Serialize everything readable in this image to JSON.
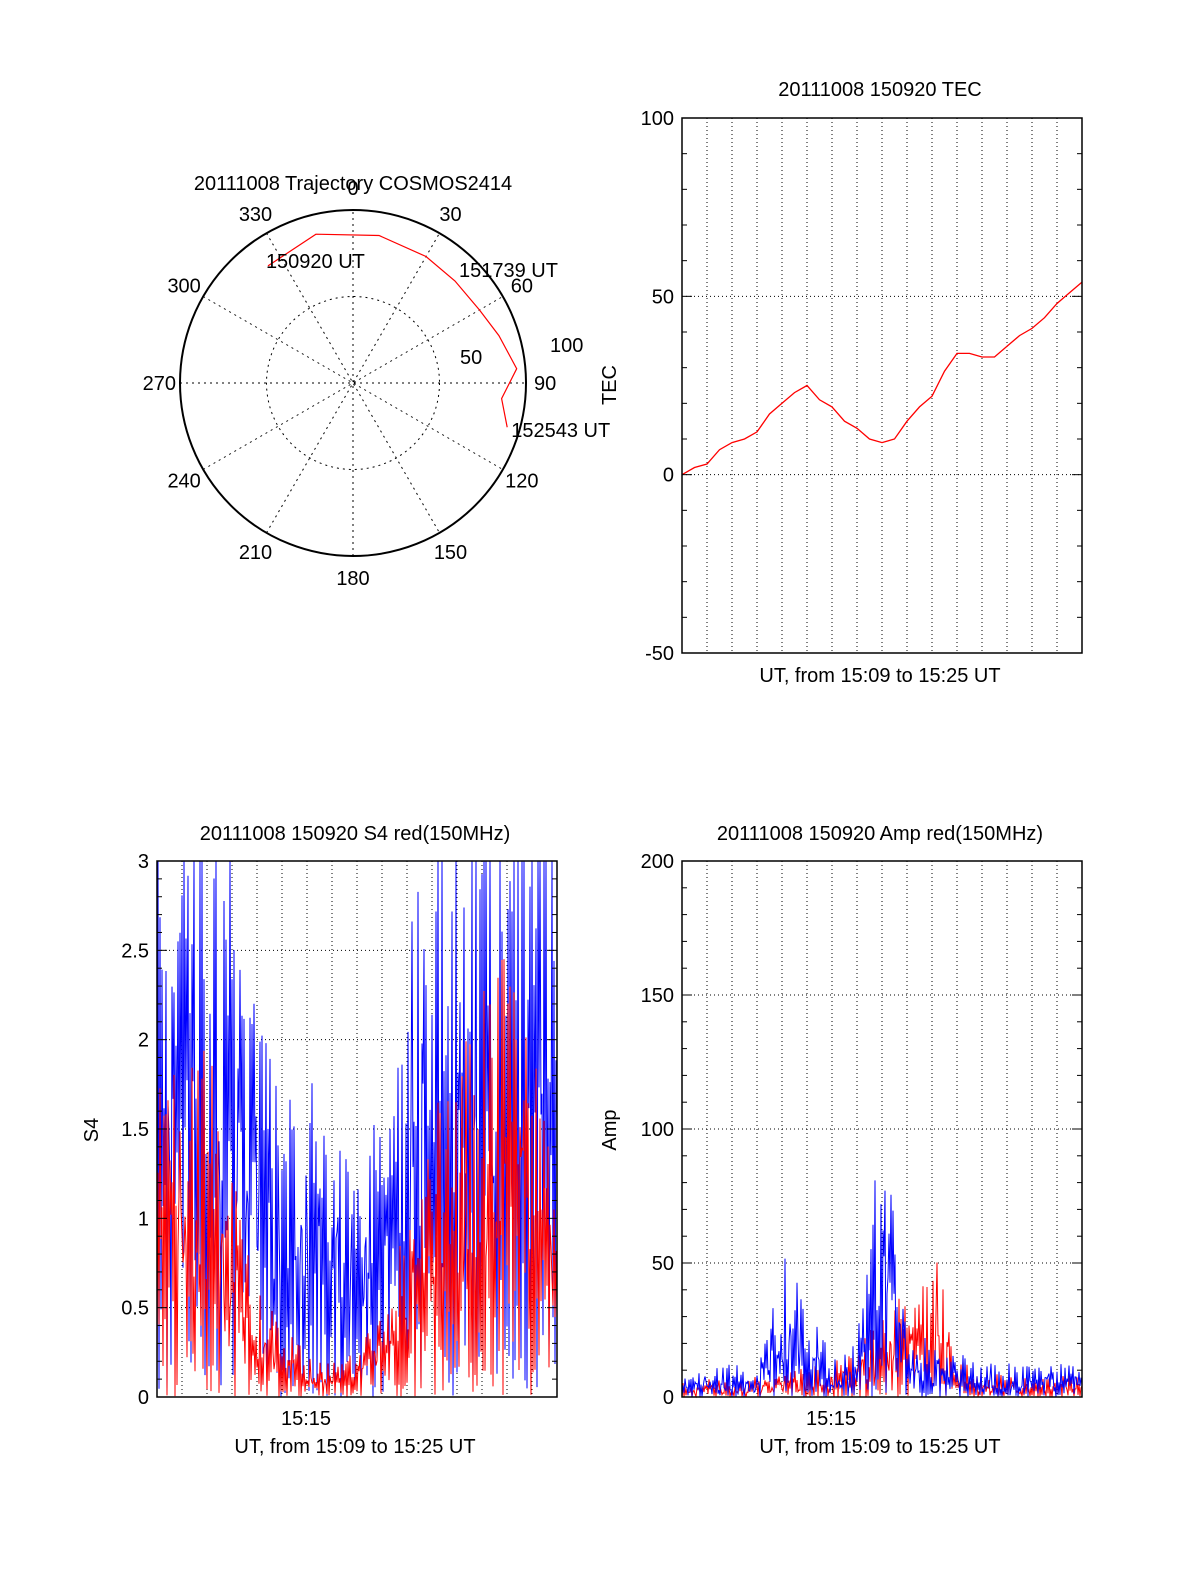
{
  "chart_data": [
    {
      "type": "polar",
      "title": "20111008 Trajectory COSMOS2414",
      "angle_labels": [
        "0",
        "30",
        "60",
        "90",
        "120",
        "150",
        "180",
        "210",
        "240",
        "270",
        "300",
        "330"
      ],
      "radius_labels": [
        "50",
        "100"
      ],
      "series": [
        {
          "color": "#ff0000",
          "points": [
            {
              "az": 324,
              "zen": 92,
              "label": "150920 UT"
            },
            {
              "az": 346,
              "zen": 84
            },
            {
              "az": 10,
              "zen": 82
            },
            {
              "az": 30,
              "zen": 80
            },
            {
              "az": 45,
              "zen": 79,
              "label": "151739 UT"
            },
            {
              "az": 60,
              "zen": 80
            },
            {
              "az": 72,
              "zen": 84
            },
            {
              "az": 85,
              "zen": 90
            },
            {
              "az": 96,
              "zen": 95
            },
            {
              "az": 106,
              "zen": 102,
              "label": "152543 UT"
            }
          ]
        }
      ]
    },
    {
      "type": "line",
      "title": "20111008 150920 TEC",
      "xlabel": "UT, from 15:09 to 15:25 UT",
      "ylabel": "TEC",
      "ylim": [
        -50,
        100
      ],
      "yticks": [
        "-50",
        "0",
        "50",
        "100"
      ],
      "series": [
        {
          "color": "#ff0000",
          "x": [
            0,
            0.5,
            1.0,
            1.5,
            2.0,
            2.5,
            3.0,
            3.5,
            4.0,
            4.5,
            5.0,
            5.5,
            6.0,
            6.5,
            7.0,
            7.5,
            8.0,
            8.5,
            9.0,
            9.5,
            10.0,
            10.5,
            11.0,
            11.5,
            12.0,
            12.5,
            13.0,
            13.5,
            14.0,
            14.5,
            15.0,
            15.5,
            16.0
          ],
          "y": [
            0,
            2,
            3,
            7,
            9,
            10,
            12,
            17,
            20,
            23,
            25,
            21,
            19,
            15,
            13,
            10,
            9,
            10,
            15,
            19,
            22,
            29,
            34,
            34,
            33,
            33,
            36,
            39,
            41,
            44,
            48,
            51,
            54
          ]
        }
      ]
    },
    {
      "type": "line",
      "title": "20111008 150920 S4 red(150MHz)",
      "xlabel": "UT, from 15:09 to 15:25 UT",
      "ylabel": "S4",
      "ylim": [
        0,
        3
      ],
      "yticks": [
        "0",
        "0.5",
        "1",
        "1.5",
        "2",
        "2.5",
        "3"
      ],
      "xticks": [
        "15:15"
      ],
      "series": [
        {
          "color": "#0000ff",
          "x": [
            0,
            1,
            2,
            3,
            4,
            5,
            6,
            7,
            8,
            9,
            10,
            11,
            12,
            13,
            14,
            15,
            16
          ],
          "y": [
            3.0,
            2.8,
            2.7,
            2.5,
            1.8,
            1.2,
            1.5,
            1.3,
            1.0,
            1.4,
            2.0,
            2.5,
            2.7,
            2.9,
            3.0,
            3.0,
            3.0
          ]
        },
        {
          "color": "#ff0000",
          "x": [
            0,
            1,
            2,
            3,
            4,
            5,
            6,
            7,
            8,
            9,
            10,
            11,
            12,
            13,
            14,
            15,
            16
          ],
          "y": [
            2.0,
            1.5,
            1.6,
            1.2,
            0.5,
            0.3,
            0.2,
            0.15,
            0.2,
            0.4,
            0.8,
            1.2,
            1.5,
            1.8,
            2.2,
            1.6,
            1.0
          ]
        }
      ]
    },
    {
      "type": "line",
      "title": "20111008 150920 Amp red(150MHz)",
      "xlabel": "UT, from 15:09 to 15:25 UT",
      "ylabel": "Amp",
      "ylim": [
        0,
        200
      ],
      "yticks": [
        "0",
        "50",
        "100",
        "150",
        "200"
      ],
      "xticks": [
        "15:15"
      ],
      "series": [
        {
          "color": "#ff0000",
          "x": [
            0,
            1,
            2,
            3,
            4,
            5,
            6,
            7,
            8,
            9,
            10,
            11,
            12,
            13,
            14,
            15,
            16
          ],
          "y": [
            5,
            6,
            6,
            7,
            8,
            10,
            12,
            20,
            30,
            40,
            55,
            15,
            8,
            8,
            7,
            7,
            8
          ]
        },
        {
          "color": "#0000ff",
          "x": [
            0,
            1,
            2,
            3,
            4,
            5,
            6,
            7,
            8,
            9,
            10,
            11,
            12,
            13,
            14,
            15,
            16
          ],
          "y": [
            10,
            10,
            12,
            10,
            55,
            30,
            15,
            20,
            100,
            25,
            20,
            15,
            12,
            12,
            12,
            12,
            12
          ]
        }
      ]
    }
  ]
}
